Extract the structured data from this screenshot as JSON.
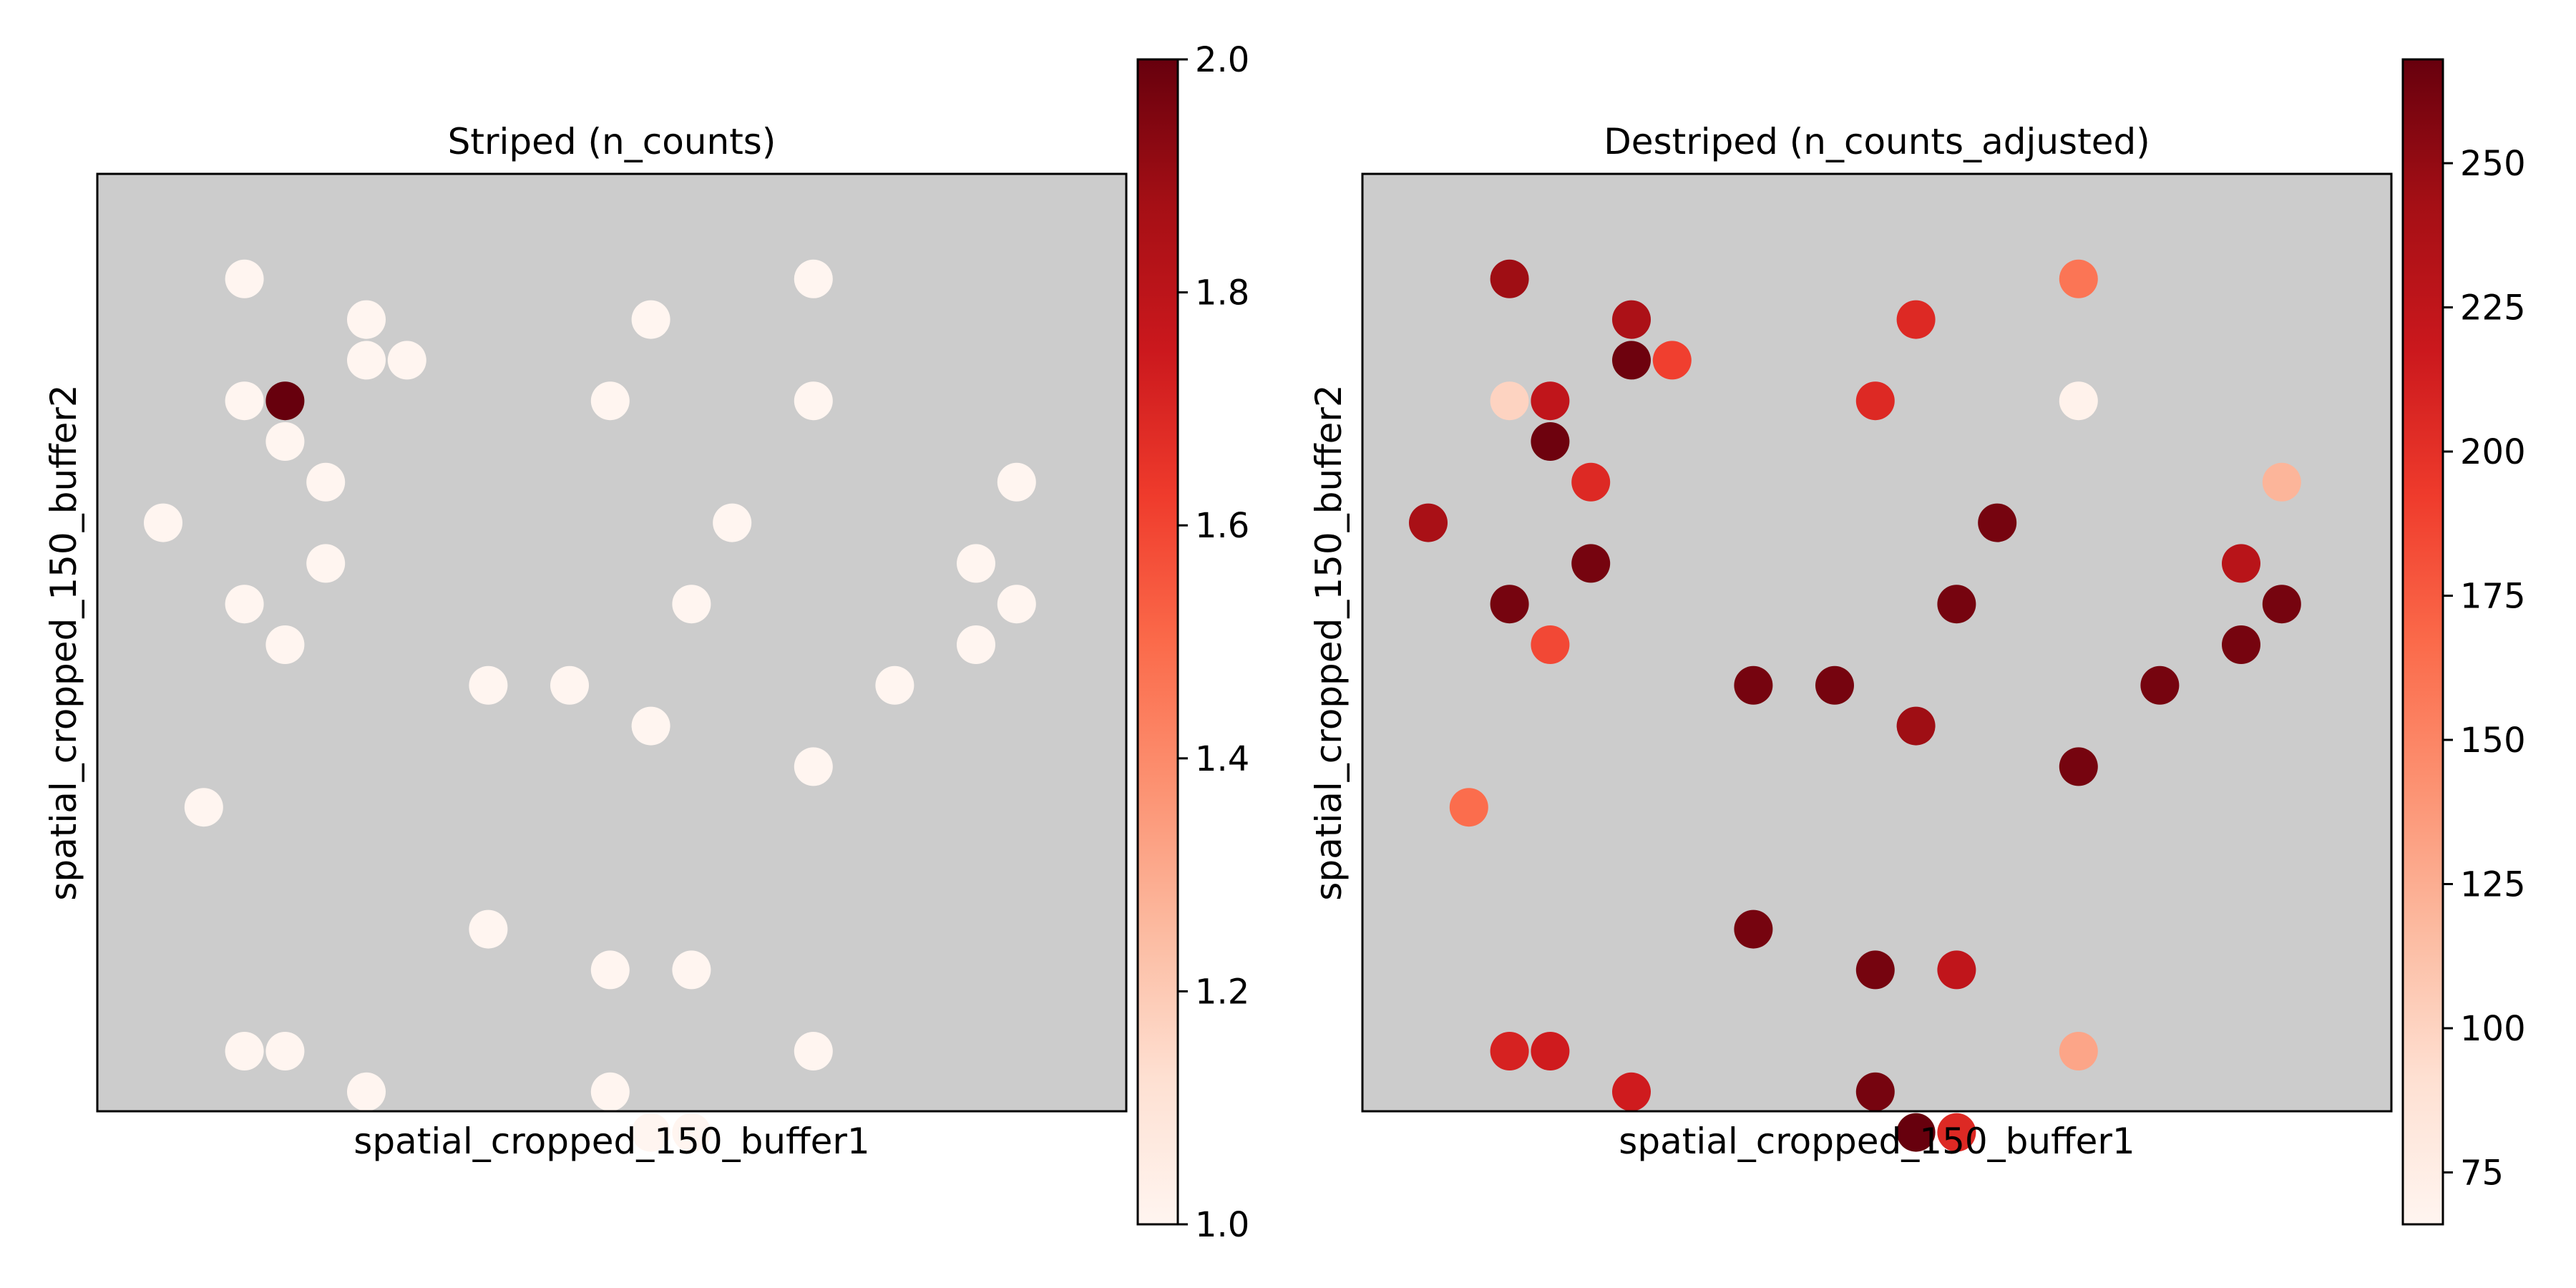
{
  "colors": {
    "background": "#cccccc",
    "colormap": "Reds",
    "colormap_stops": [
      "#fff5f0",
      "#fee0d2",
      "#fcbba1",
      "#fc9272",
      "#fb6a4a",
      "#ef3b2c",
      "#cb181d",
      "#a50f15",
      "#67000d"
    ]
  },
  "chart_data": [
    {
      "type": "scatter",
      "title": "Striped (n_counts)",
      "xlabel": "spatial_cropped_150_buffer1",
      "ylabel": "spatial_cropped_150_buffer2",
      "color_label": "",
      "colorbar": {
        "min": 1.0,
        "max": 2.0,
        "ticks": [
          1.0,
          1.2,
          1.4,
          1.6,
          1.8,
          2.0
        ],
        "tick_labels": [
          "1.0",
          "1.2",
          "1.4",
          "1.6",
          "1.8",
          "2.0"
        ]
      },
      "points": [
        {
          "col": 2,
          "row": 1,
          "value": 1
        },
        {
          "col": 5,
          "row": 2,
          "value": 1
        },
        {
          "col": 5,
          "row": 3,
          "value": 1
        },
        {
          "col": 6,
          "row": 3,
          "value": 1
        },
        {
          "col": 2,
          "row": 4,
          "value": 1
        },
        {
          "col": 3,
          "row": 4,
          "value": 2
        },
        {
          "col": 3,
          "row": 5,
          "value": 1
        },
        {
          "col": 4,
          "row": 6,
          "value": 1
        },
        {
          "col": 0,
          "row": 7,
          "value": 1
        },
        {
          "col": 4,
          "row": 8,
          "value": 1
        },
        {
          "col": 2,
          "row": 9,
          "value": 1
        },
        {
          "col": 3,
          "row": 10,
          "value": 1
        },
        {
          "col": 8,
          "row": 11,
          "value": 1
        },
        {
          "col": 10,
          "row": 11,
          "value": 1
        },
        {
          "col": 1,
          "row": 14,
          "value": 1
        },
        {
          "col": 8,
          "row": 17,
          "value": 1
        },
        {
          "col": 2,
          "row": 20,
          "value": 1
        },
        {
          "col": 3,
          "row": 20,
          "value": 1
        },
        {
          "col": 5,
          "row": 21,
          "value": 1
        },
        {
          "col": 12,
          "row": 2,
          "value": 1
        },
        {
          "col": 16,
          "row": 1,
          "value": 1
        },
        {
          "col": 11,
          "row": 4,
          "value": 1
        },
        {
          "col": 16,
          "row": 4,
          "value": 1
        },
        {
          "col": 14,
          "row": 7,
          "value": 1
        },
        {
          "col": 13,
          "row": 9,
          "value": 1
        },
        {
          "col": 12,
          "row": 12,
          "value": 1
        },
        {
          "col": 16,
          "row": 13,
          "value": 1
        },
        {
          "col": 11,
          "row": 18,
          "value": 1
        },
        {
          "col": 13,
          "row": 18,
          "value": 1
        },
        {
          "col": 16,
          "row": 20,
          "value": 1
        },
        {
          "col": 11,
          "row": 21,
          "value": 1
        },
        {
          "col": 12,
          "row": 22,
          "value": 1
        },
        {
          "col": 13,
          "row": 22,
          "value": 1
        },
        {
          "col": 21,
          "row": 6,
          "value": 1
        },
        {
          "col": 20,
          "row": 8,
          "value": 1
        },
        {
          "col": 21,
          "row": 9,
          "value": 1
        },
        {
          "col": 20,
          "row": 10,
          "value": 1
        },
        {
          "col": 18,
          "row": 11,
          "value": 1
        }
      ]
    },
    {
      "type": "scatter",
      "title": "Destriped (n_counts_adjusted)",
      "xlabel": "spatial_cropped_150_buffer1",
      "ylabel": "spatial_cropped_150_buffer2",
      "color_label": "",
      "colorbar": {
        "min": 66,
        "max": 268,
        "ticks": [
          75,
          100,
          125,
          150,
          175,
          200,
          225,
          250
        ],
        "tick_labels": [
          "75",
          "100",
          "125",
          "150",
          "175",
          "200",
          "225",
          "250"
        ]
      },
      "points": [
        {
          "col": 2,
          "row": 1,
          "value": 245
        },
        {
          "col": 5,
          "row": 2,
          "value": 238
        },
        {
          "col": 5,
          "row": 3,
          "value": 265
        },
        {
          "col": 6,
          "row": 3,
          "value": 190
        },
        {
          "col": 2,
          "row": 4,
          "value": 100
        },
        {
          "col": 3,
          "row": 4,
          "value": 225
        },
        {
          "col": 3,
          "row": 5,
          "value": 265
        },
        {
          "col": 4,
          "row": 6,
          "value": 205
        },
        {
          "col": 0,
          "row": 7,
          "value": 240
        },
        {
          "col": 4,
          "row": 8,
          "value": 262
        },
        {
          "col": 2,
          "row": 9,
          "value": 262
        },
        {
          "col": 3,
          "row": 10,
          "value": 185
        },
        {
          "col": 8,
          "row": 11,
          "value": 262
        },
        {
          "col": 10,
          "row": 11,
          "value": 262
        },
        {
          "col": 1,
          "row": 14,
          "value": 165
        },
        {
          "col": 8,
          "row": 17,
          "value": 262
        },
        {
          "col": 2,
          "row": 20,
          "value": 210
        },
        {
          "col": 3,
          "row": 20,
          "value": 215
        },
        {
          "col": 5,
          "row": 21,
          "value": 215
        },
        {
          "col": 12,
          "row": 2,
          "value": 205
        },
        {
          "col": 16,
          "row": 1,
          "value": 160
        },
        {
          "col": 11,
          "row": 4,
          "value": 205
        },
        {
          "col": 16,
          "row": 4,
          "value": 70
        },
        {
          "col": 14,
          "row": 7,
          "value": 262
        },
        {
          "col": 13,
          "row": 9,
          "value": 262
        },
        {
          "col": 12,
          "row": 12,
          "value": 245
        },
        {
          "col": 16,
          "row": 13,
          "value": 262
        },
        {
          "col": 11,
          "row": 18,
          "value": 262
        },
        {
          "col": 13,
          "row": 18,
          "value": 225
        },
        {
          "col": 16,
          "row": 20,
          "value": 130
        },
        {
          "col": 11,
          "row": 21,
          "value": 262
        },
        {
          "col": 12,
          "row": 22,
          "value": 268
        },
        {
          "col": 13,
          "row": 22,
          "value": 205
        },
        {
          "col": 21,
          "row": 6,
          "value": 120
        },
        {
          "col": 20,
          "row": 8,
          "value": 230
        },
        {
          "col": 21,
          "row": 9,
          "value": 262
        },
        {
          "col": 20,
          "row": 10,
          "value": 262
        },
        {
          "col": 18,
          "row": 11,
          "value": 262
        }
      ]
    }
  ]
}
